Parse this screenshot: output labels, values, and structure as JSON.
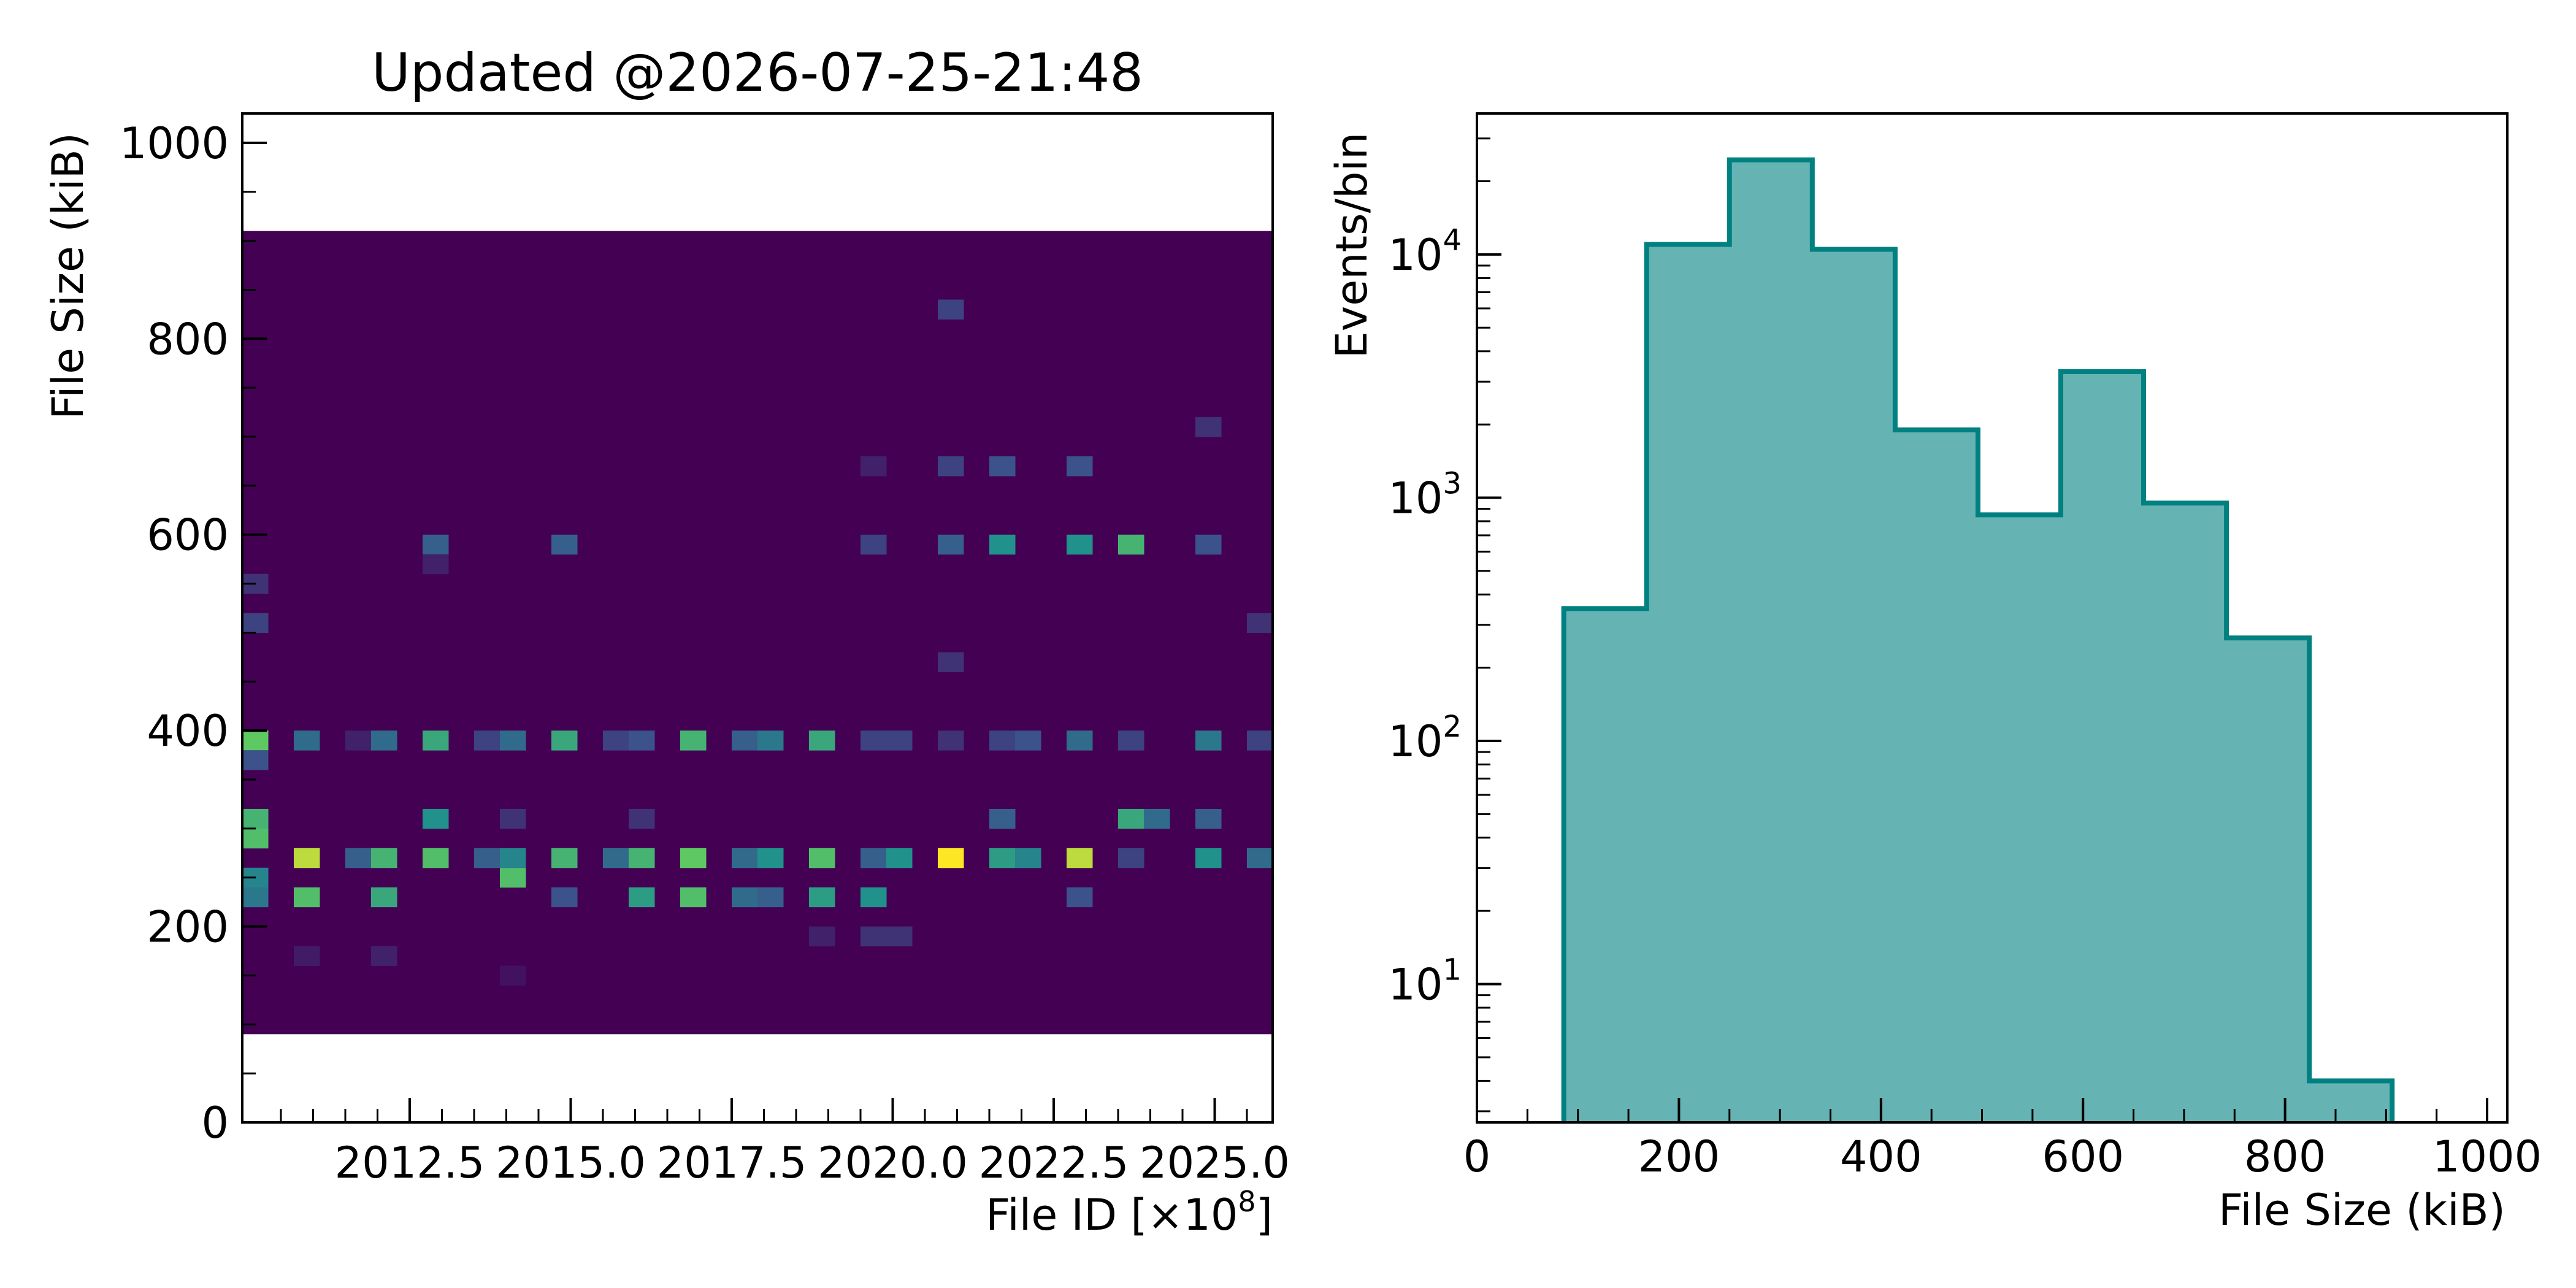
{
  "chart_data": [
    {
      "type": "heatmap",
      "title": "Updated @2026-07-25-21:48",
      "xlabel": "File ID",
      "xlabel_unit": "[×10",
      "xlabel_exp": "8",
      "xlabel_close": "]",
      "ylabel": "File Size (kiB)",
      "xlim": [
        2009.9,
        2025.9
      ],
      "ylim": [
        0,
        1030
      ],
      "xticks": [
        2012.5,
        2015.0,
        2017.5,
        2020.0,
        2022.5,
        2025.0
      ],
      "xtick_labels": [
        "2012.5",
        "2015.0",
        "2017.5",
        "2020.0",
        "2022.5",
        "2025.0"
      ],
      "yticks": [
        0,
        200,
        400,
        600,
        800,
        1000
      ],
      "ytick_labels": [
        "0",
        "200",
        "400",
        "600",
        "800",
        "1000"
      ],
      "colormap": "viridis",
      "x_bin_width": 0.4,
      "y_bin_width": 20,
      "y_fill_range": [
        90,
        910
      ],
      "background_value": 0,
      "cells": [
        [
          2009.9,
          390,
          0.75
        ],
        [
          2009.9,
          290,
          0.7
        ],
        [
          2009.9,
          310,
          0.65
        ],
        [
          2009.9,
          370,
          0.25
        ],
        [
          2009.9,
          510,
          0.2
        ],
        [
          2009.9,
          250,
          0.45
        ],
        [
          2009.9,
          230,
          0.4
        ],
        [
          2009.9,
          550,
          0.15
        ],
        [
          2010.7,
          270,
          0.9
        ],
        [
          2010.7,
          230,
          0.7
        ],
        [
          2010.7,
          390,
          0.35
        ],
        [
          2010.7,
          170,
          0.08
        ],
        [
          2011.5,
          270,
          0.3
        ],
        [
          2011.5,
          390,
          0.1
        ],
        [
          2011.9,
          270,
          0.65
        ],
        [
          2011.9,
          230,
          0.6
        ],
        [
          2011.9,
          390,
          0.35
        ],
        [
          2011.9,
          170,
          0.1
        ],
        [
          2012.7,
          270,
          0.7
        ],
        [
          2012.7,
          310,
          0.5
        ],
        [
          2012.7,
          390,
          0.6
        ],
        [
          2012.7,
          590,
          0.3
        ],
        [
          2012.7,
          570,
          0.1
        ],
        [
          2013.5,
          270,
          0.3
        ],
        [
          2013.5,
          390,
          0.2
        ],
        [
          2013.9,
          250,
          0.7
        ],
        [
          2013.9,
          270,
          0.45
        ],
        [
          2013.9,
          390,
          0.35
        ],
        [
          2013.9,
          310,
          0.15
        ],
        [
          2013.9,
          150,
          0.05
        ],
        [
          2014.7,
          270,
          0.65
        ],
        [
          2014.7,
          390,
          0.6
        ],
        [
          2014.7,
          590,
          0.3
        ],
        [
          2014.7,
          230,
          0.25
        ],
        [
          2015.5,
          270,
          0.35
        ],
        [
          2015.5,
          390,
          0.2
        ],
        [
          2015.9,
          270,
          0.65
        ],
        [
          2015.9,
          230,
          0.55
        ],
        [
          2015.9,
          390,
          0.25
        ],
        [
          2015.9,
          310,
          0.15
        ],
        [
          2016.7,
          270,
          0.75
        ],
        [
          2016.7,
          230,
          0.7
        ],
        [
          2016.7,
          390,
          0.65
        ],
        [
          2017.5,
          270,
          0.35
        ],
        [
          2017.5,
          230,
          0.35
        ],
        [
          2017.5,
          390,
          0.3
        ],
        [
          2017.9,
          270,
          0.5
        ],
        [
          2017.9,
          230,
          0.3
        ],
        [
          2017.9,
          390,
          0.4
        ],
        [
          2018.7,
          270,
          0.7
        ],
        [
          2018.7,
          230,
          0.55
        ],
        [
          2018.7,
          390,
          0.6
        ],
        [
          2018.7,
          190,
          0.1
        ],
        [
          2019.5,
          270,
          0.3
        ],
        [
          2019.5,
          230,
          0.5
        ],
        [
          2019.5,
          390,
          0.2
        ],
        [
          2019.5,
          190,
          0.15
        ],
        [
          2019.5,
          590,
          0.2
        ],
        [
          2019.5,
          670,
          0.1
        ],
        [
          2019.9,
          270,
          0.5
        ],
        [
          2019.9,
          390,
          0.2
        ],
        [
          2019.9,
          190,
          0.15
        ],
        [
          2020.7,
          270,
          1.0
        ],
        [
          2020.7,
          390,
          0.15
        ],
        [
          2020.7,
          590,
          0.3
        ],
        [
          2020.7,
          670,
          0.2
        ],
        [
          2020.7,
          830,
          0.2
        ],
        [
          2020.7,
          470,
          0.15
        ],
        [
          2021.5,
          270,
          0.55
        ],
        [
          2021.5,
          310,
          0.3
        ],
        [
          2021.5,
          390,
          0.2
        ],
        [
          2021.5,
          590,
          0.5
        ],
        [
          2021.5,
          670,
          0.25
        ],
        [
          2021.9,
          270,
          0.45
        ],
        [
          2021.9,
          390,
          0.25
        ],
        [
          2022.7,
          270,
          0.9
        ],
        [
          2022.7,
          390,
          0.35
        ],
        [
          2022.7,
          590,
          0.5
        ],
        [
          2022.7,
          670,
          0.25
        ],
        [
          2022.7,
          230,
          0.25
        ],
        [
          2023.5,
          310,
          0.6
        ],
        [
          2023.5,
          590,
          0.65
        ],
        [
          2023.5,
          390,
          0.2
        ],
        [
          2023.5,
          270,
          0.2
        ],
        [
          2023.9,
          310,
          0.35
        ],
        [
          2024.7,
          270,
          0.5
        ],
        [
          2024.7,
          310,
          0.3
        ],
        [
          2024.7,
          390,
          0.4
        ],
        [
          2024.7,
          590,
          0.25
        ],
        [
          2024.7,
          710,
          0.15
        ],
        [
          2025.5,
          270,
          0.35
        ],
        [
          2025.5,
          390,
          0.2
        ],
        [
          2025.5,
          510,
          0.15
        ]
      ]
    },
    {
      "type": "histogram",
      "title": "",
      "xlabel": "File Size (kiB)",
      "ylabel": "Events/bin",
      "xlim": [
        0,
        1020
      ],
      "ylim": [
        2.7,
        38000
      ],
      "yscale": "log",
      "xticks": [
        0,
        200,
        400,
        600,
        800,
        1000
      ],
      "xtick_labels": [
        "0",
        "200",
        "400",
        "600",
        "800",
        "1000"
      ],
      "yticks": [
        10,
        100,
        1000,
        10000
      ],
      "ytick_base": [
        "10",
        "10",
        "10",
        "10"
      ],
      "ytick_exp": [
        "1",
        "2",
        "3",
        "4"
      ],
      "bin_edges": [
        86,
        168,
        250,
        332,
        414,
        496,
        578,
        660,
        742,
        824,
        906
      ],
      "values": [
        350,
        11000,
        24500,
        10500,
        1900,
        850,
        3300,
        950,
        265,
        4
      ],
      "fill_color": "#008080",
      "fill_opacity": 0.6
    }
  ]
}
